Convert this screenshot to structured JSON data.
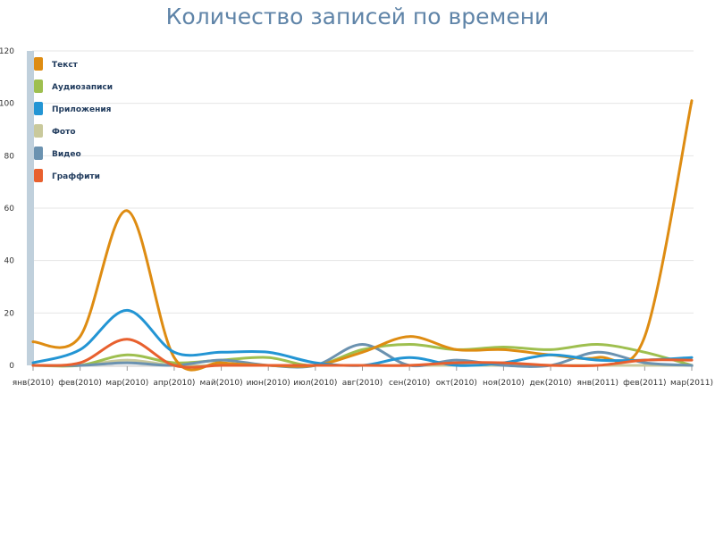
{
  "chart_data": {
    "type": "line",
    "title": "Количество записей по времени",
    "xlabel": "",
    "ylabel": "",
    "ylim": [
      0,
      120
    ],
    "y_ticks": [
      0,
      20,
      40,
      60,
      80,
      100,
      120
    ],
    "grid": true,
    "legend_position": "top-left",
    "categories": [
      "янв(2010)",
      "фев(2010)",
      "мар(2010)",
      "апр(2010)",
      "май(2010)",
      "июн(2010)",
      "июл(2010)",
      "авг(2010)",
      "сен(2010)",
      "окт(2010)",
      "ноя(2010)",
      "дек(2010)",
      "янв(2011)",
      "фев(2011)",
      "мар(2011)"
    ],
    "series": [
      {
        "name": "Текст",
        "color": "#de8c12",
        "values": [
          9,
          11,
          59,
          3,
          1,
          0,
          0,
          5,
          11,
          6,
          6,
          4,
          3,
          11,
          101
        ]
      },
      {
        "name": "Аудиозаписи",
        "color": "#9ebf4f",
        "values": [
          0,
          0,
          4,
          1,
          2,
          3,
          0,
          6,
          8,
          6,
          7,
          6,
          8,
          5,
          0
        ]
      },
      {
        "name": "Приложения",
        "color": "#2395d4",
        "values": [
          1,
          6,
          21,
          5,
          5,
          5,
          1,
          0,
          3,
          0,
          1,
          4,
          2,
          2,
          3
        ]
      },
      {
        "name": "Фото",
        "color": "#c9c99c",
        "values": [
          0,
          0,
          2,
          0,
          0,
          0,
          0,
          0,
          0,
          0,
          0,
          0,
          0,
          0,
          0
        ]
      },
      {
        "name": "Видео",
        "color": "#6b92b0",
        "values": [
          0,
          0,
          1,
          0,
          2,
          0,
          0,
          8,
          0,
          2,
          0,
          0,
          5,
          1,
          0
        ]
      },
      {
        "name": "Граффити",
        "color": "#e8602e",
        "values": [
          0,
          1,
          10,
          0,
          0,
          0,
          0,
          0,
          0,
          1,
          1,
          0,
          0,
          2,
          2
        ]
      }
    ]
  },
  "colors": {
    "title": "#5f84a8",
    "axis_bar": "#c0d0dc",
    "grid": "#e4e4e4"
  }
}
